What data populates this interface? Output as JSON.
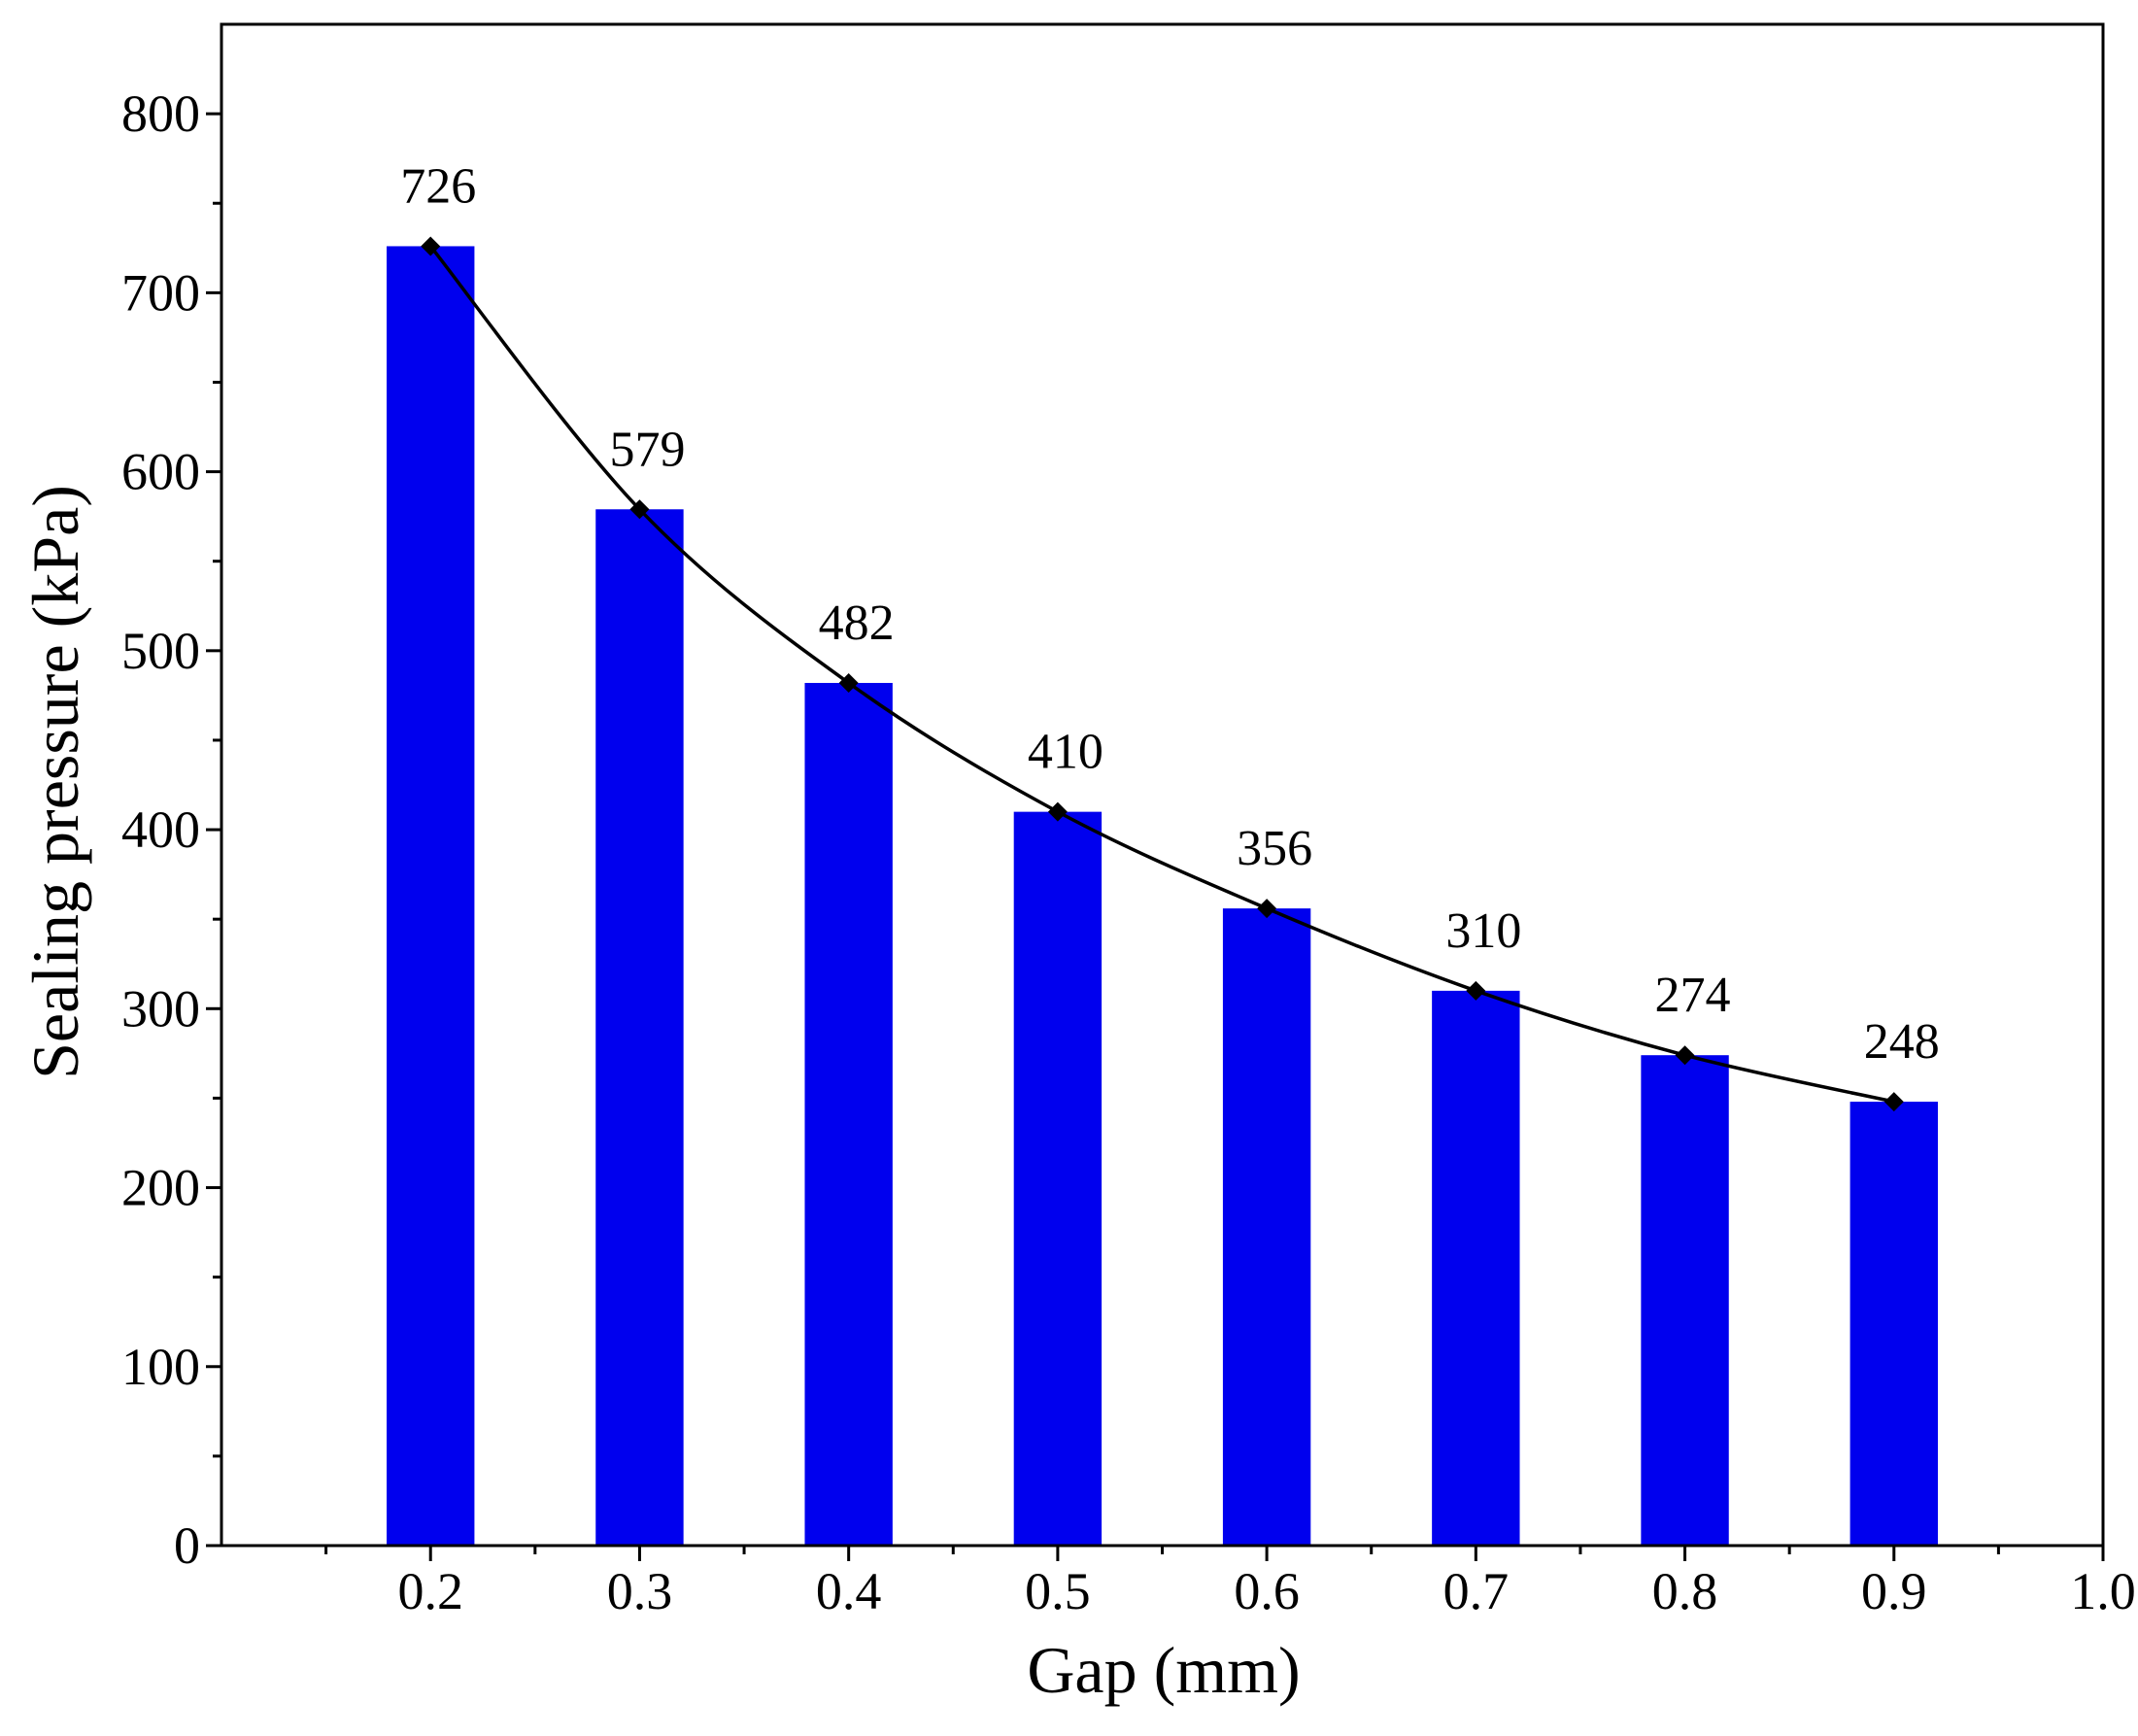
{
  "chart_data": {
    "type": "bar",
    "title": "",
    "xlabel": "Gap (mm)",
    "ylabel": "Sealing pressure (kPa)",
    "categories": [
      "0.2",
      "0.3",
      "0.4",
      "0.5",
      "0.6",
      "0.7",
      "0.8",
      "0.9"
    ],
    "x": [
      0.2,
      0.3,
      0.4,
      0.5,
      0.6,
      0.7,
      0.8,
      0.9
    ],
    "values": [
      726,
      579,
      482,
      410,
      356,
      310,
      274,
      248
    ],
    "data_labels": [
      "726",
      "579",
      "482",
      "410",
      "356",
      "310",
      "274",
      "248"
    ],
    "bar_width": 0.042,
    "line_overlay": true,
    "xlim": [
      0.1,
      1.0
    ],
    "ylim": [
      0,
      850
    ],
    "xticks": [
      0.2,
      0.3,
      0.4,
      0.5,
      0.6,
      0.7,
      0.8,
      0.9,
      1.0
    ],
    "xtick_labels": [
      "0.2",
      "0.3",
      "0.4",
      "0.5",
      "0.6",
      "0.7",
      "0.8",
      "0.9",
      "1.0"
    ],
    "yticks": [
      0,
      100,
      200,
      300,
      400,
      500,
      600,
      700,
      800
    ],
    "ytick_labels": [
      "0",
      "100",
      "200",
      "300",
      "400",
      "500",
      "600",
      "700",
      "800"
    ],
    "y_minor_step": 50,
    "grid": false,
    "legend": "none",
    "colors": {
      "bar": "#0000ee",
      "line": "#000000",
      "marker": "#000000",
      "axis": "#000000"
    }
  }
}
